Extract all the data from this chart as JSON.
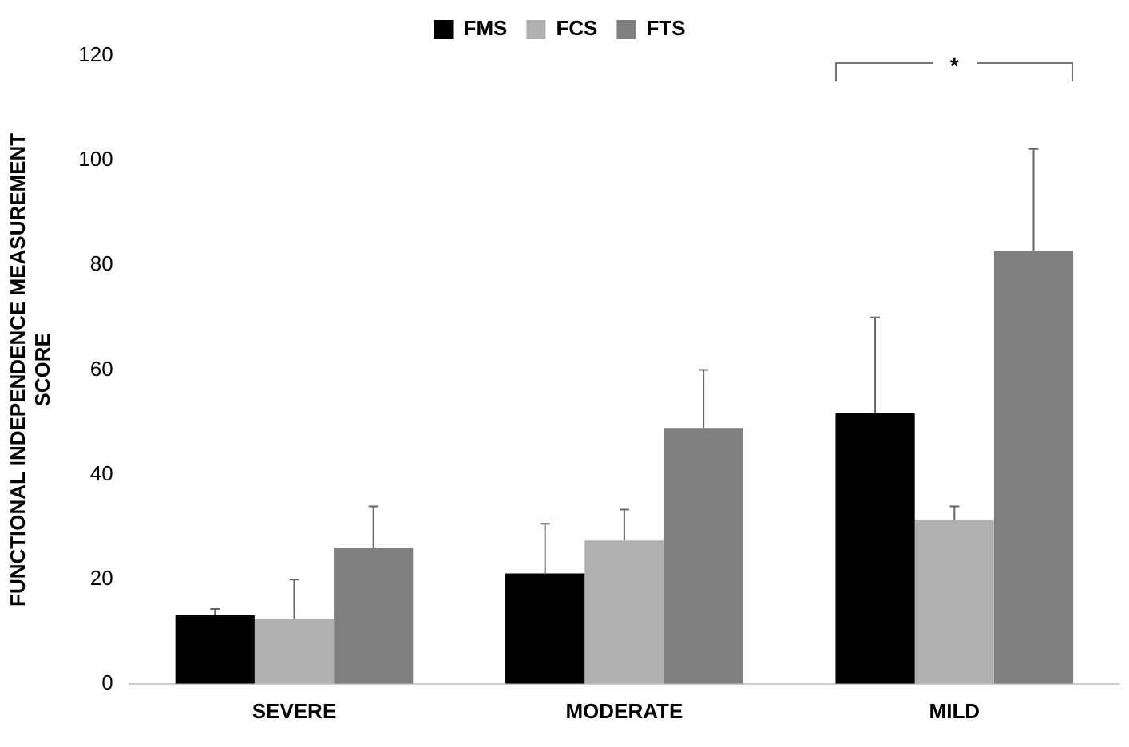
{
  "chart_data": {
    "type": "bar",
    "ylabel": "FUNCTIONAL INDEPENDENCE MEASUREMENT SCORE",
    "categories": [
      "SEVERE",
      "MODERATE",
      "MILD"
    ],
    "series": [
      {
        "name": "FMS",
        "color": "#000000",
        "values": [
          13.1,
          21.1,
          51.7
        ],
        "errors": [
          [
            13.1,
            14.3
          ],
          [
            21.1,
            30.6
          ],
          [
            51.7,
            70.0
          ]
        ]
      },
      {
        "name": "FCS",
        "color": "#b0b0b0",
        "values": [
          12.4,
          27.4,
          31.3
        ],
        "errors": [
          [
            12.4,
            19.9
          ],
          [
            27.4,
            33.3
          ],
          [
            31.3,
            33.9
          ]
        ]
      },
      {
        "name": "FTS",
        "color": "#808080",
        "values": [
          25.9,
          48.9,
          82.7
        ],
        "errors": [
          [
            25.9,
            33.9
          ],
          [
            48.9,
            60.0
          ],
          [
            82.7,
            102.2
          ]
        ]
      }
    ],
    "ylim": [
      0,
      120
    ],
    "yticks": [
      0,
      20,
      40,
      60,
      80,
      100,
      120
    ],
    "grid": false,
    "legend": "top",
    "annotations": [
      "*"
    ]
  }
}
